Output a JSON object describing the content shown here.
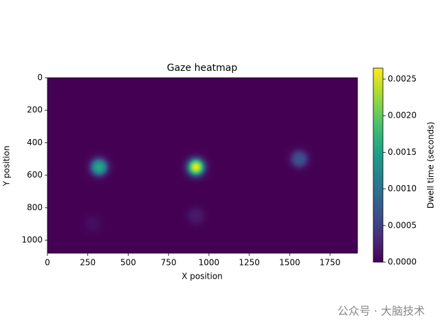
{
  "chart_data": {
    "type": "heatmap",
    "title": "Gaze heatmap",
    "xlabel": "X position",
    "ylabel": "Y position",
    "colorbar_label": "Dwell time (seconds)",
    "colormap": "viridis",
    "x": [
      320,
      920,
      1560,
      920,
      280
    ],
    "y": [
      550,
      550,
      500,
      850,
      900
    ],
    "values": [
      0.0016,
      0.0026,
      0.0007,
      0.0002,
      0.0001
    ],
    "xlim": [
      0,
      1920
    ],
    "ylim": [
      1080,
      0
    ],
    "xticks": [
      0,
      250,
      500,
      750,
      1000,
      1250,
      1500,
      1750
    ],
    "yticks": [
      0,
      200,
      400,
      600,
      800,
      1000
    ],
    "clim": [
      0,
      0.00265
    ],
    "cticks": [
      {
        "value": 0,
        "label": "0.0000"
      },
      {
        "value": 0.0005,
        "label": "0.0005"
      },
      {
        "value": 0.001,
        "label": "0.0010"
      },
      {
        "value": 0.0015,
        "label": "0.0015"
      },
      {
        "value": 0.002,
        "label": "0.0020"
      },
      {
        "value": 0.0025,
        "label": "0.0025"
      }
    ]
  },
  "watermark": "公众号 · 大脑技术"
}
